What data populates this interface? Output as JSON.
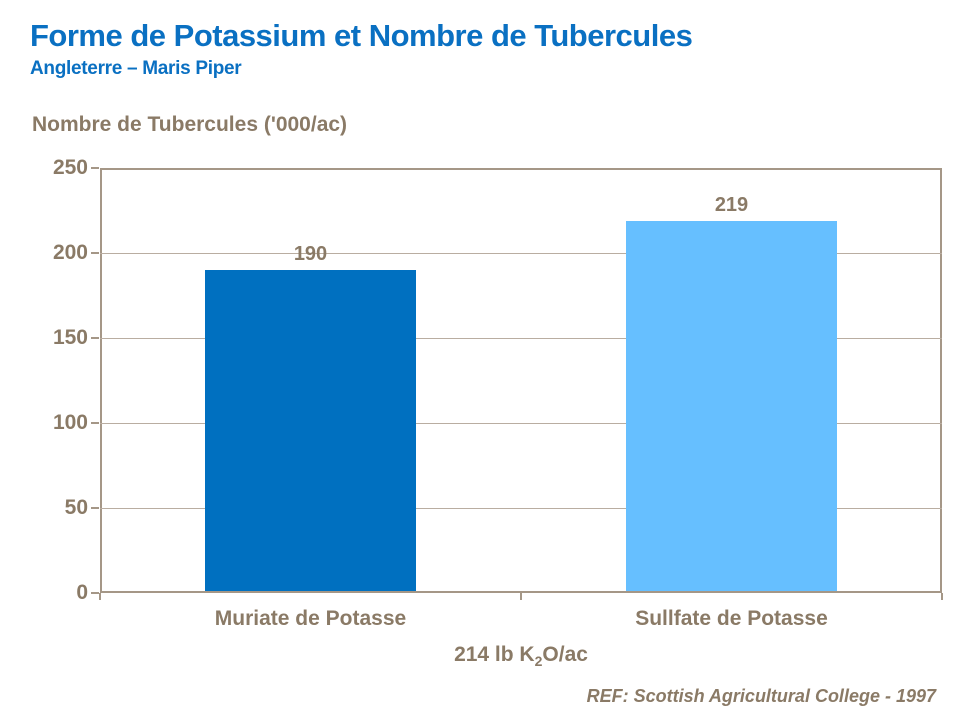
{
  "page": {
    "title": "Forme de Potassium et Nombre de Tubercules",
    "subtitle": "Angleterre – Maris Piper",
    "footer_ref": "REF: Scottish Agricultural College - 1997"
  },
  "colors": {
    "title_blue": "#0a70c2",
    "text_brown": "#8a7a66",
    "axis_line": "#a59787",
    "gridline": "#b9ada1"
  },
  "chart_data": {
    "type": "bar",
    "ylabel": "Nombre de Tubercules ('000/ac)",
    "categories": [
      "Muriate de Potasse",
      "Sullfate de Potasse"
    ],
    "values": [
      190,
      219
    ],
    "data_labels": [
      "190",
      "219"
    ],
    "bar_colors": [
      "#0070C0",
      "#66BFFF"
    ],
    "xlabel": {
      "prefix": "214 lb K",
      "sub": "2",
      "suffix": "O/ac"
    },
    "ylim": [
      0,
      250
    ],
    "yticks": [
      0,
      50,
      100,
      150,
      200,
      250
    ],
    "grid": "horizontal",
    "legend": "none"
  }
}
